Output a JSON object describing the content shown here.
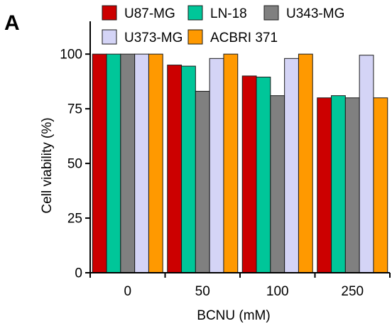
{
  "panel_label": "A",
  "chart_data": {
    "type": "bar",
    "xlabel": "BCNU (mM)",
    "ylabel": "Cell viability (%)",
    "categories": [
      "0",
      "50",
      "100",
      "250"
    ],
    "ylim": [
      0,
      115
    ],
    "yticks": [
      "0",
      "25",
      "50",
      "75",
      "100"
    ],
    "grid": false,
    "legend_position": "top",
    "series": [
      {
        "name": "U87-MG",
        "color": "#cc0000",
        "values": [
          100,
          95,
          90,
          80
        ]
      },
      {
        "name": "LN-18",
        "color": "#00c699",
        "values": [
          100,
          94.5,
          89.5,
          81
        ]
      },
      {
        "name": "U343-MG",
        "color": "#808080",
        "values": [
          100,
          83,
          81,
          80
        ]
      },
      {
        "name": "U373-MG",
        "color": "#d4d4f6",
        "values": [
          100,
          98,
          98,
          99.5
        ]
      },
      {
        "name": "ACBRI 371",
        "color": "#ff9900",
        "values": [
          100,
          100,
          100,
          80
        ]
      }
    ]
  }
}
